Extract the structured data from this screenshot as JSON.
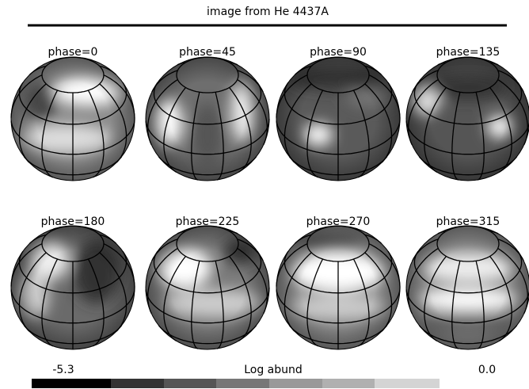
{
  "title": "image from He 4437A",
  "panels": [
    {
      "label": "phase=0"
    },
    {
      "label": "phase=45"
    },
    {
      "label": "phase=90"
    },
    {
      "label": "phase=135"
    },
    {
      "label": "phase=180"
    },
    {
      "label": "phase=225"
    },
    {
      "label": "phase=270"
    },
    {
      "label": "phase=315"
    }
  ],
  "colorbar": {
    "min_label": "-5.3",
    "label": "Log abund",
    "max_label": "0.0"
  }
}
